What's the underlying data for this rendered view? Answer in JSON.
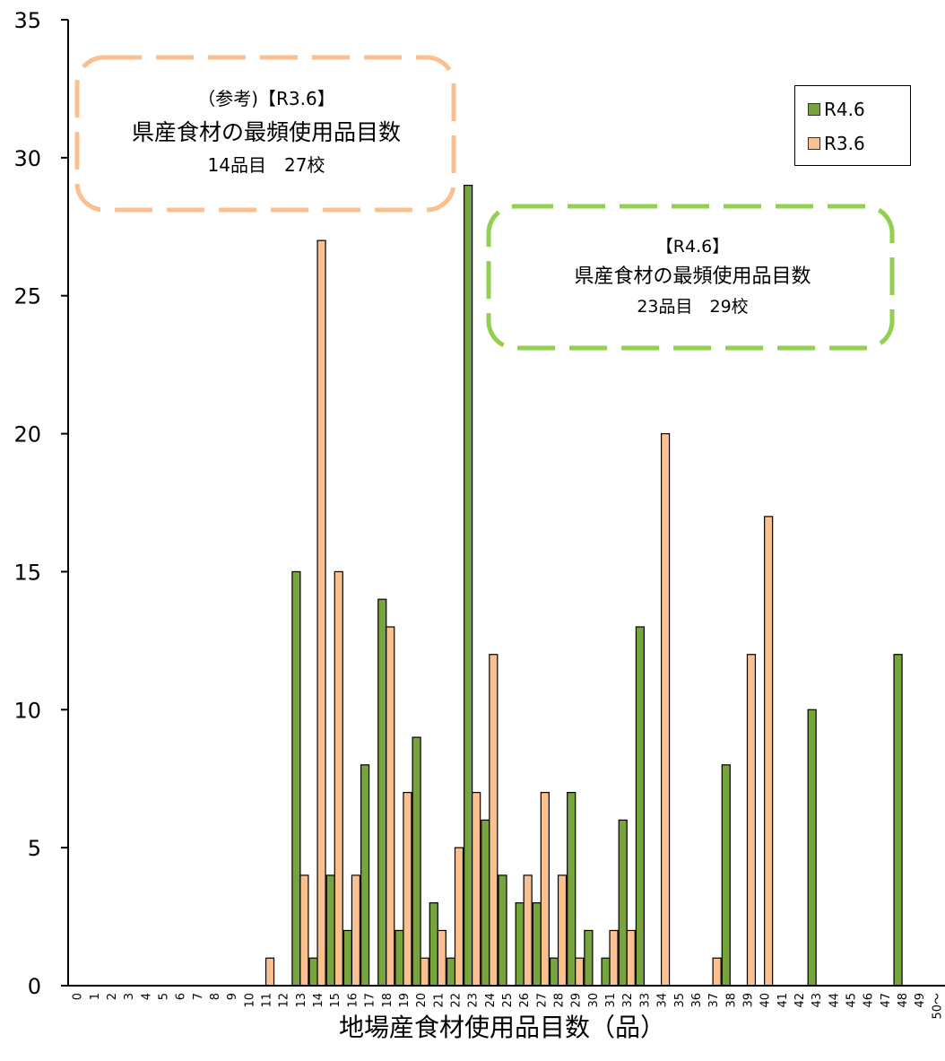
{
  "chart_data": {
    "type": "bar",
    "xlabel": "地場産食材使用品目数（品）",
    "ylabel": "",
    "ylim": [
      0,
      35
    ],
    "yticks": [
      0,
      5,
      10,
      15,
      20,
      25,
      30,
      35
    ],
    "grid": false,
    "legend_position": "top-right",
    "categories": [
      "0",
      "1",
      "2",
      "3",
      "4",
      "5",
      "6",
      "7",
      "8",
      "9",
      "10",
      "11",
      "12",
      "13",
      "14",
      "15",
      "16",
      "17",
      "18",
      "19",
      "20",
      "21",
      "22",
      "23",
      "24",
      "25",
      "26",
      "27",
      "28",
      "29",
      "30",
      "31",
      "32",
      "33",
      "34",
      "35",
      "36",
      "37",
      "38",
      "39",
      "40",
      "41",
      "42",
      "43",
      "44",
      "45",
      "46",
      "47",
      "48",
      "49",
      "50～"
    ],
    "series": [
      {
        "name": "R4.6",
        "color": "#77a43c",
        "values": [
          0,
          0,
          0,
          0,
          0,
          0,
          0,
          0,
          0,
          0,
          0,
          0,
          0,
          15,
          1,
          4,
          2,
          8,
          14,
          2,
          9,
          3,
          1,
          29,
          6,
          4,
          3,
          3,
          1,
          7,
          2,
          1,
          6,
          13,
          0,
          0,
          0,
          0,
          8,
          0,
          0,
          0,
          0,
          10,
          0,
          0,
          0,
          0,
          12,
          0,
          0
        ]
      },
      {
        "name": "R3.6",
        "color": "#fac090",
        "values": [
          0,
          0,
          0,
          0,
          0,
          0,
          0,
          0,
          0,
          0,
          0,
          1,
          0,
          4,
          27,
          15,
          4,
          0,
          13,
          7,
          1,
          2,
          5,
          7,
          12,
          0,
          4,
          7,
          4,
          1,
          0,
          2,
          2,
          0,
          20,
          0,
          0,
          1,
          0,
          12,
          17,
          0,
          0,
          0,
          0,
          0,
          0,
          0,
          0,
          0,
          0
        ]
      }
    ],
    "annotations": [
      {
        "id": "r36",
        "color": "#fac090",
        "lines": [
          "（参考)【R3.6】",
          "県産食材の最頻使用品目数",
          "14品目　27校"
        ]
      },
      {
        "id": "r46",
        "color": "#92d050",
        "lines": [
          "【R4.6】",
          "県産食材の最頻使用品目数",
          "23品目　29校"
        ]
      }
    ]
  }
}
